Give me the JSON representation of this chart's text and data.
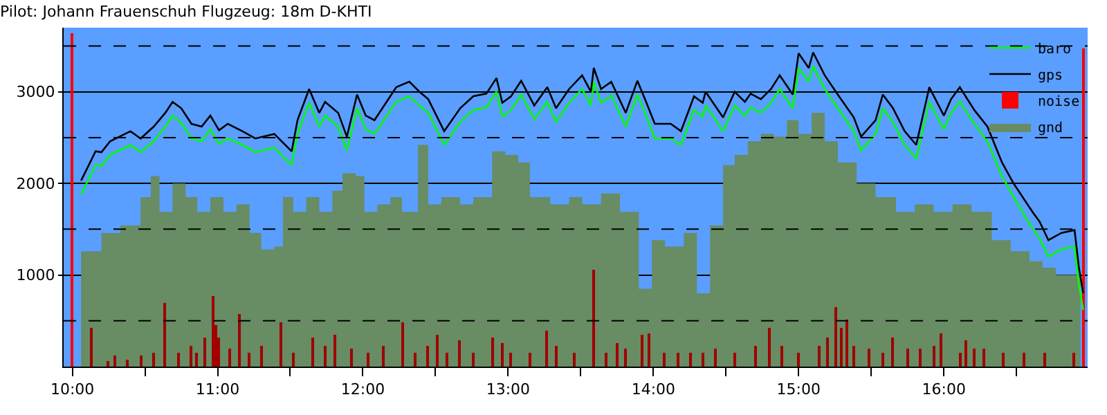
{
  "chart_data": {
    "type": "line",
    "title": "Pilot: Johann Frauenschuh Flugzeug: 18m D-KHTI",
    "xlim": [
      9.94,
      16.99
    ],
    "ylim": [
      0,
      3700
    ],
    "xticks": [
      {
        "value": 10,
        "label": "10:00"
      },
      {
        "value": 10.5,
        "label": null
      },
      {
        "value": 11,
        "label": "11:00"
      },
      {
        "value": 11.5,
        "label": null
      },
      {
        "value": 12,
        "label": "12:00"
      },
      {
        "value": 12.5,
        "label": null
      },
      {
        "value": 13,
        "label": "13:00"
      },
      {
        "value": 13.5,
        "label": null
      },
      {
        "value": 14,
        "label": "14:00"
      },
      {
        "value": 14.5,
        "label": null
      },
      {
        "value": 15,
        "label": "15:00"
      },
      {
        "value": 15.5,
        "label": null
      },
      {
        "value": 16,
        "label": "16:00"
      },
      {
        "value": 16.5,
        "label": null
      }
    ],
    "yticks": [
      1000,
      2000,
      3000
    ],
    "grid": "y",
    "legend": "top right",
    "marker": "none",
    "line_style": "solid",
    "ref_lines": [
      {
        "axis": "y",
        "value": 500,
        "line_style": "dashed",
        "color": "#000000"
      },
      {
        "axis": "y",
        "value": 1500,
        "line_style": "dashed",
        "color": "#000000"
      },
      {
        "axis": "y",
        "value": 2500,
        "line_style": "dashed",
        "color": "#000000"
      },
      {
        "axis": "y",
        "value": 3500,
        "line_style": "dashed",
        "color": "#000000"
      }
    ],
    "series": [
      {
        "name": "baro",
        "color": "#00ff00",
        "x": [
          10.06,
          10.16,
          10.2,
          10.26,
          10.4,
          10.47,
          10.56,
          10.64,
          10.69,
          10.75,
          10.82,
          10.89,
          10.95,
          11.01,
          11.07,
          11.17,
          11.26,
          11.39,
          11.51,
          11.55,
          11.63,
          11.7,
          11.74,
          11.83,
          11.89,
          11.96,
          12.02,
          12.08,
          12.23,
          12.32,
          12.39,
          12.45,
          12.56,
          12.67,
          12.76,
          12.85,
          12.92,
          12.96,
          13.02,
          13.09,
          13.18,
          13.27,
          13.33,
          13.42,
          13.51,
          13.57,
          13.59,
          13.64,
          13.71,
          13.81,
          13.89,
          13.95,
          14.01,
          14.12,
          14.19,
          14.28,
          14.34,
          14.36,
          14.48,
          14.56,
          14.63,
          14.67,
          14.74,
          14.81,
          14.87,
          14.96,
          15.0,
          15.07,
          15.1,
          15.18,
          15.27,
          15.38,
          15.43,
          15.53,
          15.58,
          15.65,
          15.73,
          15.81,
          15.9,
          16.0,
          16.05,
          16.11,
          16.21,
          16.3,
          16.4,
          16.48,
          16.61,
          16.66,
          16.72,
          16.81,
          16.9,
          16.93,
          16.96
        ],
        "values": [
          1880,
          2200,
          2190,
          2310,
          2420,
          2340,
          2460,
          2620,
          2740,
          2660,
          2490,
          2460,
          2590,
          2430,
          2490,
          2420,
          2340,
          2390,
          2200,
          2540,
          2880,
          2620,
          2740,
          2620,
          2360,
          2820,
          2590,
          2540,
          2890,
          2950,
          2850,
          2770,
          2420,
          2670,
          2800,
          2830,
          3000,
          2730,
          2800,
          2970,
          2700,
          2890,
          2670,
          2880,
          3030,
          2850,
          3110,
          2880,
          2960,
          2620,
          2970,
          2740,
          2490,
          2490,
          2420,
          2800,
          2730,
          2850,
          2570,
          2850,
          2740,
          2830,
          2770,
          2880,
          3030,
          2820,
          3260,
          3110,
          3280,
          3030,
          2820,
          2570,
          2360,
          2540,
          2820,
          2670,
          2420,
          2270,
          2890,
          2590,
          2770,
          2890,
          2650,
          2460,
          2080,
          1850,
          1510,
          1400,
          1200,
          1280,
          1310,
          890,
          620
        ]
      },
      {
        "name": "gps",
        "color": "#000000",
        "x": [
          10.06,
          10.16,
          10.2,
          10.26,
          10.4,
          10.47,
          10.56,
          10.64,
          10.69,
          10.75,
          10.82,
          10.89,
          10.95,
          11.01,
          11.07,
          11.17,
          11.26,
          11.39,
          11.51,
          11.55,
          11.63,
          11.7,
          11.74,
          11.83,
          11.89,
          11.96,
          12.02,
          12.08,
          12.23,
          12.32,
          12.39,
          12.45,
          12.56,
          12.67,
          12.76,
          12.85,
          12.92,
          12.96,
          13.02,
          13.09,
          13.18,
          13.27,
          13.33,
          13.42,
          13.51,
          13.57,
          13.59,
          13.64,
          13.71,
          13.81,
          13.89,
          13.95,
          14.01,
          14.12,
          14.19,
          14.28,
          14.34,
          14.36,
          14.48,
          14.56,
          14.63,
          14.67,
          14.74,
          14.81,
          14.87,
          14.96,
          15.0,
          15.07,
          15.1,
          15.18,
          15.27,
          15.38,
          15.43,
          15.53,
          15.58,
          15.65,
          15.73,
          15.81,
          15.9,
          16.0,
          16.05,
          16.11,
          16.21,
          16.3,
          16.4,
          16.48,
          16.61,
          16.66,
          16.72,
          16.81,
          16.9,
          16.93,
          16.96
        ],
        "values": [
          2030,
          2350,
          2340,
          2460,
          2570,
          2490,
          2620,
          2770,
          2890,
          2820,
          2650,
          2620,
          2740,
          2580,
          2650,
          2570,
          2490,
          2540,
          2350,
          2690,
          3030,
          2770,
          2890,
          2770,
          2510,
          2970,
          2740,
          2690,
          3050,
          3110,
          3000,
          2920,
          2570,
          2820,
          2950,
          2980,
          3150,
          2880,
          2950,
          3120,
          2850,
          3050,
          2820,
          3030,
          3180,
          3000,
          3260,
          3030,
          3110,
          2770,
          3120,
          2890,
          2650,
          2650,
          2570,
          2950,
          2880,
          3000,
          2720,
          3000,
          2890,
          2980,
          2920,
          3030,
          3180,
          2970,
          3420,
          3260,
          3430,
          3180,
          2970,
          2720,
          2510,
          2690,
          2970,
          2820,
          2570,
          2420,
          3050,
          2740,
          2920,
          3050,
          2800,
          2620,
          2230,
          2000,
          1690,
          1580,
          1380,
          1460,
          1490,
          1080,
          800
        ]
      },
      {
        "name": "noise",
        "type": "bar",
        "color": "#a00000",
        "x": [
          10.0,
          10.13,
          10.25,
          10.29,
          10.38,
          10.47,
          10.56,
          10.64,
          10.73,
          10.82,
          10.86,
          10.91,
          10.97,
          10.99,
          11.01,
          11.08,
          11.15,
          11.22,
          11.3,
          11.44,
          11.52,
          11.66,
          11.74,
          11.81,
          11.92,
          12.04,
          12.14,
          12.28,
          12.36,
          12.45,
          12.51,
          12.58,
          12.67,
          12.76,
          12.89,
          12.96,
          13.02,
          13.15,
          13.27,
          13.33,
          13.46,
          13.59,
          13.68,
          13.75,
          13.81,
          13.92,
          13.97,
          14.08,
          14.17,
          14.26,
          14.34,
          14.43,
          14.56,
          14.7,
          14.8,
          14.89,
          15.0,
          15.14,
          15.2,
          15.26,
          15.3,
          15.33,
          15.38,
          15.49,
          15.58,
          15.65,
          15.75,
          15.84,
          15.93,
          15.98,
          16.11,
          16.15,
          16.21,
          16.28,
          16.41,
          16.55,
          16.7,
          16.9,
          16.96
        ],
        "values": [
          3640,
          430,
          60,
          120,
          80,
          120,
          150,
          690,
          150,
          230,
          150,
          310,
          770,
          460,
          310,
          190,
          580,
          150,
          230,
          490,
          150,
          310,
          230,
          340,
          190,
          150,
          230,
          490,
          150,
          230,
          340,
          150,
          280,
          150,
          310,
          260,
          150,
          150,
          390,
          230,
          150,
          1050,
          150,
          260,
          190,
          340,
          360,
          150,
          150,
          150,
          150,
          190,
          150,
          230,
          420,
          230,
          150,
          230,
          310,
          650,
          430,
          520,
          230,
          190,
          150,
          310,
          190,
          190,
          230,
          370,
          150,
          280,
          190,
          190,
          150,
          150,
          150,
          150,
          3480
        ],
        "colors": [
          "#ff0000",
          "#a00000",
          "#a00000",
          "#a00000",
          "#a00000",
          "#a00000",
          "#a00000",
          "#a00000",
          "#a00000",
          "#a00000",
          "#a00000",
          "#a00000",
          "#a00000",
          "#a00000",
          "#a00000",
          "#a00000",
          "#a00000",
          "#a00000",
          "#a00000",
          "#a00000",
          "#a00000",
          "#a00000",
          "#a00000",
          "#a00000",
          "#a00000",
          "#a00000",
          "#a00000",
          "#a00000",
          "#a00000",
          "#a00000",
          "#a00000",
          "#a00000",
          "#a00000",
          "#a00000",
          "#a00000",
          "#a00000",
          "#a00000",
          "#a00000",
          "#a00000",
          "#a00000",
          "#a00000",
          "#a00000",
          "#a00000",
          "#a00000",
          "#a00000",
          "#a00000",
          "#a00000",
          "#a00000",
          "#a00000",
          "#a00000",
          "#a00000",
          "#a00000",
          "#a00000",
          "#a00000",
          "#a00000",
          "#a00000",
          "#a00000",
          "#a00000",
          "#a00000",
          "#a00000",
          "#a00000",
          "#a00000",
          "#a00000",
          "#a00000",
          "#a00000",
          "#a00000",
          "#a00000",
          "#a00000",
          "#a00000",
          "#a00000",
          "#a00000",
          "#a00000",
          "#a00000",
          "#a00000",
          "#a00000",
          "#a00000",
          "#a00000",
          "#a00000",
          "#ff0000"
        ]
      },
      {
        "name": "gnd",
        "type": "area",
        "color": "#688c64",
        "x": [
          10.06,
          10.2,
          10.33,
          10.47,
          10.54,
          10.6,
          10.69,
          10.78,
          10.86,
          10.95,
          11.04,
          11.13,
          11.22,
          11.3,
          11.39,
          11.45,
          11.52,
          11.61,
          11.7,
          11.79,
          11.86,
          11.95,
          12.01,
          12.1,
          12.19,
          12.27,
          12.38,
          12.45,
          12.54,
          12.67,
          12.76,
          12.89,
          12.98,
          13.07,
          13.15,
          13.29,
          13.42,
          13.51,
          13.64,
          13.77,
          13.9,
          13.99,
          14.08,
          14.21,
          14.3,
          14.39,
          14.48,
          14.56,
          14.65,
          14.74,
          14.83,
          14.92,
          15.0,
          15.09,
          15.18,
          15.27,
          15.4,
          15.53,
          15.67,
          15.8,
          15.93,
          16.06,
          16.19,
          16.33,
          16.46,
          16.59,
          16.68,
          16.77,
          16.85,
          16.94
        ],
        "values": [
          1260,
          1460,
          1540,
          1850,
          2080,
          1690,
          2000,
          1850,
          1690,
          1850,
          1690,
          1770,
          1460,
          1280,
          1310,
          1850,
          1690,
          1850,
          1690,
          1920,
          2110,
          2080,
          1690,
          1770,
          1850,
          1690,
          2420,
          1770,
          1850,
          1770,
          1850,
          2350,
          2310,
          2230,
          1850,
          1770,
          1850,
          1770,
          1890,
          1690,
          850,
          1380,
          1310,
          1460,
          800,
          1540,
          2200,
          2310,
          2460,
          2540,
          2510,
          2690,
          2540,
          2770,
          2460,
          2230,
          2000,
          1850,
          1690,
          1770,
          1690,
          1770,
          1690,
          1380,
          1260,
          1150,
          1080,
          1000,
          1000,
          460
        ]
      }
    ]
  }
}
